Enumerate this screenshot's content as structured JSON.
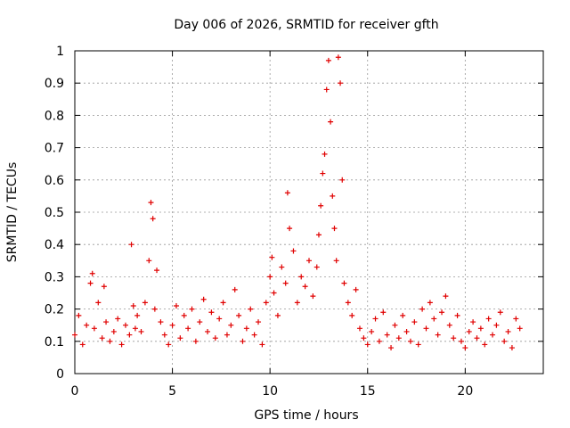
{
  "chart_data": {
    "type": "scatter",
    "title": "Day 006 of 2026, SRMTID for receiver gfth",
    "xlabel": "GPS time / hours",
    "ylabel": "SRMTID / TECUs",
    "xlim": [
      0,
      24
    ],
    "ylim": [
      0,
      1
    ],
    "grid": true,
    "marker": "+",
    "x_ticks": [
      0,
      5,
      10,
      15,
      20
    ],
    "y_ticks": [
      0,
      0.1,
      0.2,
      0.3,
      0.4,
      0.5,
      0.6,
      0.7,
      0.8,
      0.9,
      1
    ],
    "x_tick_labels": [
      "0",
      "5",
      "10",
      "15",
      "20"
    ],
    "y_tick_labels": [
      "0",
      "0.1",
      "0.2",
      "0.3",
      "0.4",
      "0.5",
      "0.6",
      "0.7",
      "0.8",
      "0.9",
      "1"
    ],
    "series": [
      {
        "name": "SRMTID",
        "color": "#e00000",
        "x": [
          0.0,
          0.2,
          0.4,
          0.6,
          0.8,
          0.9,
          1.0,
          1.2,
          1.4,
          1.5,
          1.6,
          1.8,
          2.0,
          2.2,
          2.4,
          2.6,
          2.8,
          2.9,
          3.0,
          3.1,
          3.2,
          3.4,
          3.6,
          3.8,
          3.9,
          4.0,
          4.1,
          4.2,
          4.4,
          4.6,
          4.8,
          5.0,
          5.2,
          5.4,
          5.6,
          5.8,
          6.0,
          6.2,
          6.4,
          6.6,
          6.8,
          7.0,
          7.2,
          7.4,
          7.6,
          7.8,
          8.0,
          8.2,
          8.4,
          8.6,
          8.8,
          9.0,
          9.2,
          9.4,
          9.6,
          9.8,
          10.0,
          10.1,
          10.2,
          10.4,
          10.6,
          10.8,
          10.9,
          11.0,
          11.2,
          11.4,
          11.6,
          11.8,
          12.0,
          12.2,
          12.4,
          12.5,
          12.6,
          12.7,
          12.8,
          12.9,
          13.0,
          13.1,
          13.2,
          13.3,
          13.4,
          13.5,
          13.6,
          13.7,
          13.8,
          14.0,
          14.2,
          14.4,
          14.6,
          14.8,
          15.0,
          15.2,
          15.4,
          15.6,
          15.8,
          16.0,
          16.2,
          16.4,
          16.6,
          16.8,
          17.0,
          17.2,
          17.4,
          17.6,
          17.8,
          18.0,
          18.2,
          18.4,
          18.6,
          18.8,
          19.0,
          19.2,
          19.4,
          19.6,
          19.8,
          20.0,
          20.2,
          20.4,
          20.6,
          20.8,
          21.0,
          21.2,
          21.4,
          21.6,
          21.8,
          22.0,
          22.2,
          22.4,
          22.6,
          22.8
        ],
        "y": [
          0.12,
          0.18,
          0.09,
          0.15,
          0.28,
          0.31,
          0.14,
          0.22,
          0.11,
          0.27,
          0.16,
          0.1,
          0.13,
          0.17,
          0.09,
          0.15,
          0.12,
          0.4,
          0.21,
          0.14,
          0.18,
          0.13,
          0.22,
          0.35,
          0.53,
          0.48,
          0.2,
          0.32,
          0.16,
          0.12,
          0.09,
          0.15,
          0.21,
          0.11,
          0.18,
          0.14,
          0.2,
          0.1,
          0.16,
          0.23,
          0.13,
          0.19,
          0.11,
          0.17,
          0.22,
          0.12,
          0.15,
          0.26,
          0.18,
          0.1,
          0.14,
          0.2,
          0.12,
          0.16,
          0.09,
          0.22,
          0.3,
          0.36,
          0.25,
          0.18,
          0.33,
          0.28,
          0.56,
          0.45,
          0.38,
          0.22,
          0.3,
          0.27,
          0.35,
          0.24,
          0.33,
          0.43,
          0.52,
          0.62,
          0.68,
          0.88,
          0.97,
          0.78,
          0.55,
          0.45,
          0.35,
          0.98,
          0.9,
          0.6,
          0.28,
          0.22,
          0.18,
          0.26,
          0.14,
          0.11,
          0.09,
          0.13,
          0.17,
          0.1,
          0.19,
          0.12,
          0.08,
          0.15,
          0.11,
          0.18,
          0.13,
          0.1,
          0.16,
          0.09,
          0.2,
          0.14,
          0.22,
          0.17,
          0.12,
          0.19,
          0.24,
          0.15,
          0.11,
          0.18,
          0.1,
          0.08,
          0.13,
          0.16,
          0.11,
          0.14,
          0.09,
          0.17,
          0.12,
          0.15,
          0.19,
          0.1,
          0.13,
          0.08,
          0.17,
          0.14
        ]
      }
    ]
  }
}
